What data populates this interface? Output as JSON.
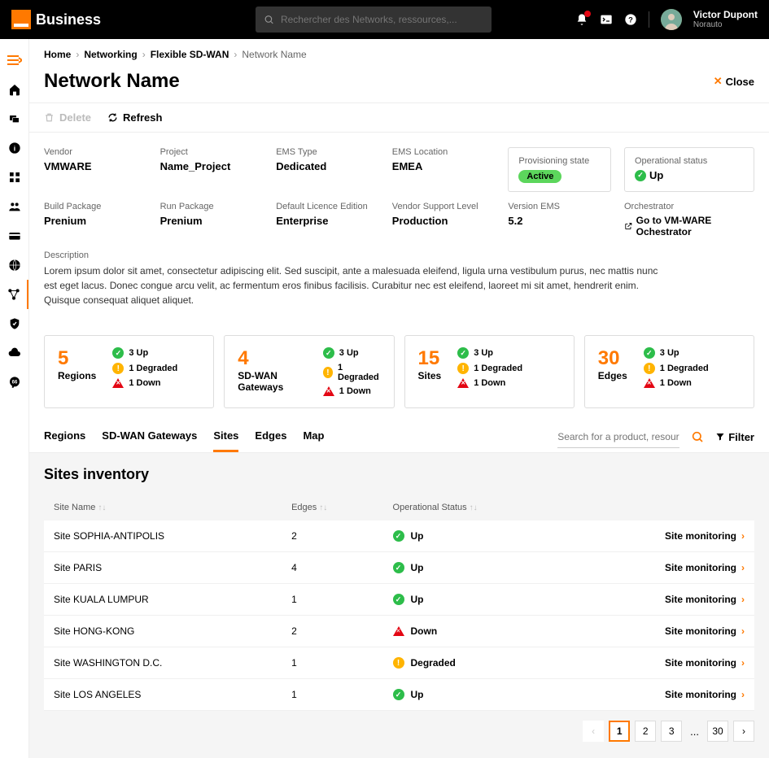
{
  "header": {
    "brand": "Business",
    "search_placeholder": "Rechercher des Networks, ressources,...",
    "user_name": "Victor Dupont",
    "user_org": "Norauto"
  },
  "breadcrumb": {
    "home": "Home",
    "networking": "Networking",
    "sdwan": "Flexible SD-WAN",
    "current": "Network Name"
  },
  "page": {
    "title": "Network Name",
    "close": "Close",
    "delete": "Delete",
    "refresh": "Refresh"
  },
  "fields": {
    "vendor_label": "Vendor",
    "vendor_value": "VMWARE",
    "project_label": "Project",
    "project_value": "Name_Project",
    "emstype_label": "EMS Type",
    "emstype_value": "Dedicated",
    "emsloc_label": "EMS Location",
    "emsloc_value": "EMEA",
    "prov_label": "Provisioning state",
    "prov_value": "Active",
    "oper_label": "Operational status",
    "oper_value": "Up",
    "build_label": "Build Package",
    "build_value": "Prenium",
    "run_label": "Run Package",
    "run_value": "Prenium",
    "licence_label": "Default Licence Edition",
    "licence_value": "Enterprise",
    "support_label": "Vendor Support Level",
    "support_value": "Production",
    "version_label": "Version EMS",
    "version_value": "5.2",
    "orch_label": "Orchestrator",
    "orch_link": "Go to VM-WARE Ochestrator",
    "desc_label": "Description",
    "desc_text": "Lorem ipsum dolor sit amet, consectetur adipiscing elit. Sed suscipit, ante a malesuada eleifend, ligula urna vestibulum purus, nec mattis nunc est eget lacus. Donec congue arcu velit, ac fermentum eros finibus facilisis. Curabitur nec est eleifend, laoreet mi sit amet, hendrerit enim. Quisque consequat aliquet aliquet."
  },
  "summary": [
    {
      "count": "5",
      "label": "Regions",
      "up": "3 Up",
      "deg": "1 Degraded",
      "down": "1 Down"
    },
    {
      "count": "4",
      "label": "SD-WAN Gateways",
      "up": "3 Up",
      "deg": "1 Degraded",
      "down": "1 Down"
    },
    {
      "count": "15",
      "label": "Sites",
      "up": "3 Up",
      "deg": "1 Degraded",
      "down": "1 Down"
    },
    {
      "count": "30",
      "label": "Edges",
      "up": "3 Up",
      "deg": "1 Degraded",
      "down": "1 Down"
    }
  ],
  "tabs": {
    "regions": "Regions",
    "gateways": "SD-WAN Gateways",
    "sites": "Sites",
    "edges": "Edges",
    "map": "Map",
    "search_placeholder": "Search for a product, resourc…",
    "filter": "Filter"
  },
  "inventory": {
    "title": "Sites inventory",
    "col_name": "Site Name",
    "col_edges": "Edges",
    "col_status": "Operational Status",
    "action": "Site monitoring",
    "rows": [
      {
        "name": "Site SOPHIA-ANTIPOLIS",
        "edges": "2",
        "status": "Up",
        "kind": "ok"
      },
      {
        "name": "Site PARIS",
        "edges": "4",
        "status": "Up",
        "kind": "ok"
      },
      {
        "name": "Site KUALA LUMPUR",
        "edges": "1",
        "status": "Up",
        "kind": "ok"
      },
      {
        "name": "Site HONG-KONG",
        "edges": "2",
        "status": "Down",
        "kind": "down"
      },
      {
        "name": "Site WASHINGTON D.C.",
        "edges": "1",
        "status": "Degraded",
        "kind": "warn"
      },
      {
        "name": "Site LOS ANGELES",
        "edges": "1",
        "status": "Up",
        "kind": "ok"
      }
    ]
  },
  "pager": {
    "p1": "1",
    "p2": "2",
    "p3": "3",
    "dots": "...",
    "last": "30"
  },
  "colors": {
    "accent": "#ff7900",
    "success": "#2dbd4a",
    "warning": "#ffb400",
    "danger": "#e30613"
  }
}
